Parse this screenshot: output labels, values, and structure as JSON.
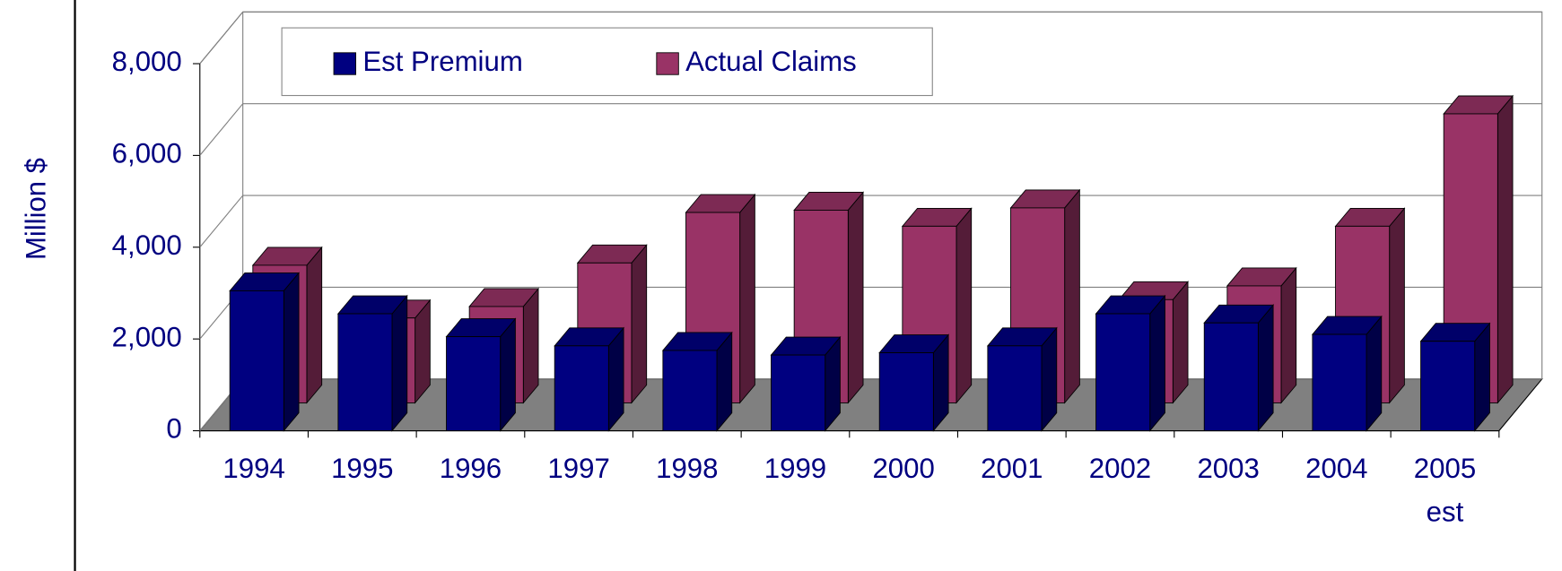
{
  "chart_data": {
    "type": "bar3d",
    "y_label": "Million $",
    "categories": [
      "1994",
      "1995",
      "1996",
      "1997",
      "1998",
      "1999",
      "2000",
      "2001",
      "2002",
      "2003",
      "2004",
      "2005 est"
    ],
    "series": [
      {
        "name": "Est Premium",
        "color": "#000080",
        "values": [
          3050,
          2550,
          2050,
          1850,
          1750,
          1650,
          1700,
          1850,
          2550,
          2350,
          2100,
          1950
        ]
      },
      {
        "name": "Actual Claims",
        "color": "#993366",
        "values": [
          3000,
          1850,
          2100,
          3050,
          4150,
          4200,
          3850,
          4250,
          2250,
          2550,
          3850,
          6300
        ]
      }
    ],
    "ylim": [
      0,
      8000
    ],
    "yticks": [
      0,
      {
        "value": 2000,
        "label": "2,000"
      },
      {
        "value": 4000,
        "label": "4,000"
      },
      {
        "value": 6000,
        "label": "6,000"
      },
      {
        "value": 8000,
        "label": "8,000"
      }
    ],
    "grid": true,
    "legend": "top"
  }
}
